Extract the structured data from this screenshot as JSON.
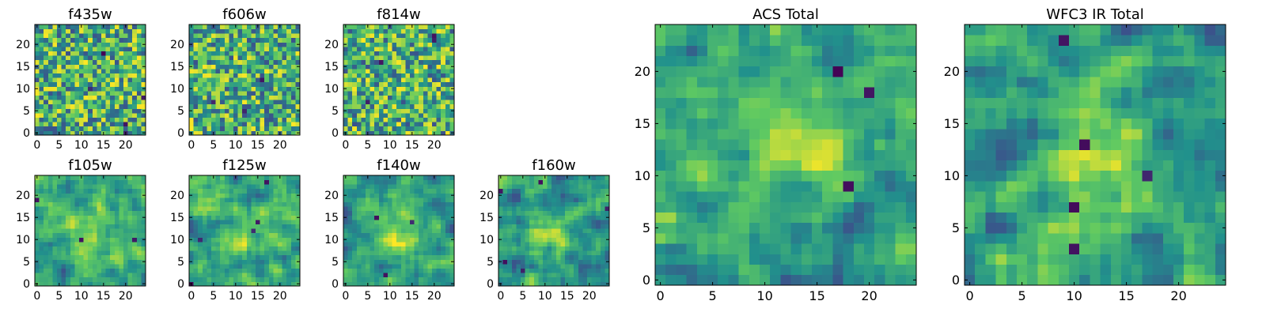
{
  "chart_data": [
    {
      "type": "heatmap",
      "title": "f435w",
      "colormap": "viridis",
      "grid_size": 25,
      "xlim": [
        0,
        24
      ],
      "ylim": [
        0,
        24
      ],
      "xticks": [
        "0",
        "5",
        "10",
        "15",
        "20"
      ],
      "yticks": [
        "0",
        "5",
        "10",
        "15",
        "20"
      ]
    },
    {
      "type": "heatmap",
      "title": "f606w",
      "colormap": "viridis",
      "grid_size": 25,
      "xlim": [
        0,
        24
      ],
      "ylim": [
        0,
        24
      ],
      "xticks": [
        "0",
        "5",
        "10",
        "15",
        "20"
      ],
      "yticks": [
        "0",
        "5",
        "10",
        "15",
        "20"
      ]
    },
    {
      "type": "heatmap",
      "title": "f814w",
      "colormap": "viridis",
      "grid_size": 25,
      "xlim": [
        0,
        24
      ],
      "ylim": [
        0,
        24
      ],
      "xticks": [
        "0",
        "5",
        "10",
        "15",
        "20"
      ],
      "yticks": [
        "0",
        "5",
        "10",
        "15",
        "20"
      ]
    },
    {
      "type": "heatmap",
      "title": "f105w",
      "colormap": "viridis",
      "grid_size": 25,
      "xlim": [
        0,
        24
      ],
      "ylim": [
        0,
        24
      ],
      "xticks": [
        "0",
        "5",
        "10",
        "15",
        "20"
      ],
      "yticks": [
        "0",
        "5",
        "10",
        "15",
        "20"
      ]
    },
    {
      "type": "heatmap",
      "title": "f125w",
      "colormap": "viridis",
      "grid_size": 25,
      "xlim": [
        0,
        24
      ],
      "ylim": [
        0,
        24
      ],
      "xticks": [
        "0",
        "5",
        "10",
        "15",
        "20"
      ],
      "yticks": [
        "0",
        "5",
        "10",
        "15",
        "20"
      ]
    },
    {
      "type": "heatmap",
      "title": "f140w",
      "colormap": "viridis",
      "grid_size": 25,
      "xlim": [
        0,
        24
      ],
      "ylim": [
        0,
        24
      ],
      "xticks": [
        "0",
        "5",
        "10",
        "15",
        "20"
      ],
      "yticks": [
        "0",
        "5",
        "10",
        "15",
        "20"
      ]
    },
    {
      "type": "heatmap",
      "title": "f160w",
      "colormap": "viridis",
      "grid_size": 25,
      "xlim": [
        0,
        24
      ],
      "ylim": [
        0,
        24
      ],
      "xticks": [
        "0",
        "5",
        "10",
        "15",
        "20"
      ],
      "yticks": [
        "0",
        "5",
        "10",
        "15",
        "20"
      ]
    },
    {
      "type": "heatmap",
      "title": "ACS Total",
      "colormap": "viridis",
      "grid_size": 25,
      "xlim": [
        0,
        24
      ],
      "ylim": [
        0,
        24
      ],
      "xticks": [
        "0",
        "5",
        "10",
        "15",
        "20"
      ],
      "yticks": [
        "0",
        "5",
        "10",
        "15",
        "20"
      ]
    },
    {
      "type": "heatmap",
      "title": "WFC3 IR Total",
      "colormap": "viridis",
      "grid_size": 25,
      "xlim": [
        0,
        24
      ],
      "ylim": [
        0,
        24
      ],
      "xticks": [
        "0",
        "5",
        "10",
        "15",
        "20"
      ],
      "yticks": [
        "0",
        "5",
        "10",
        "15",
        "20"
      ]
    }
  ],
  "colors": {
    "viridis": [
      "#440154",
      "#3b528b",
      "#21918c",
      "#5ec962",
      "#fde725"
    ]
  }
}
